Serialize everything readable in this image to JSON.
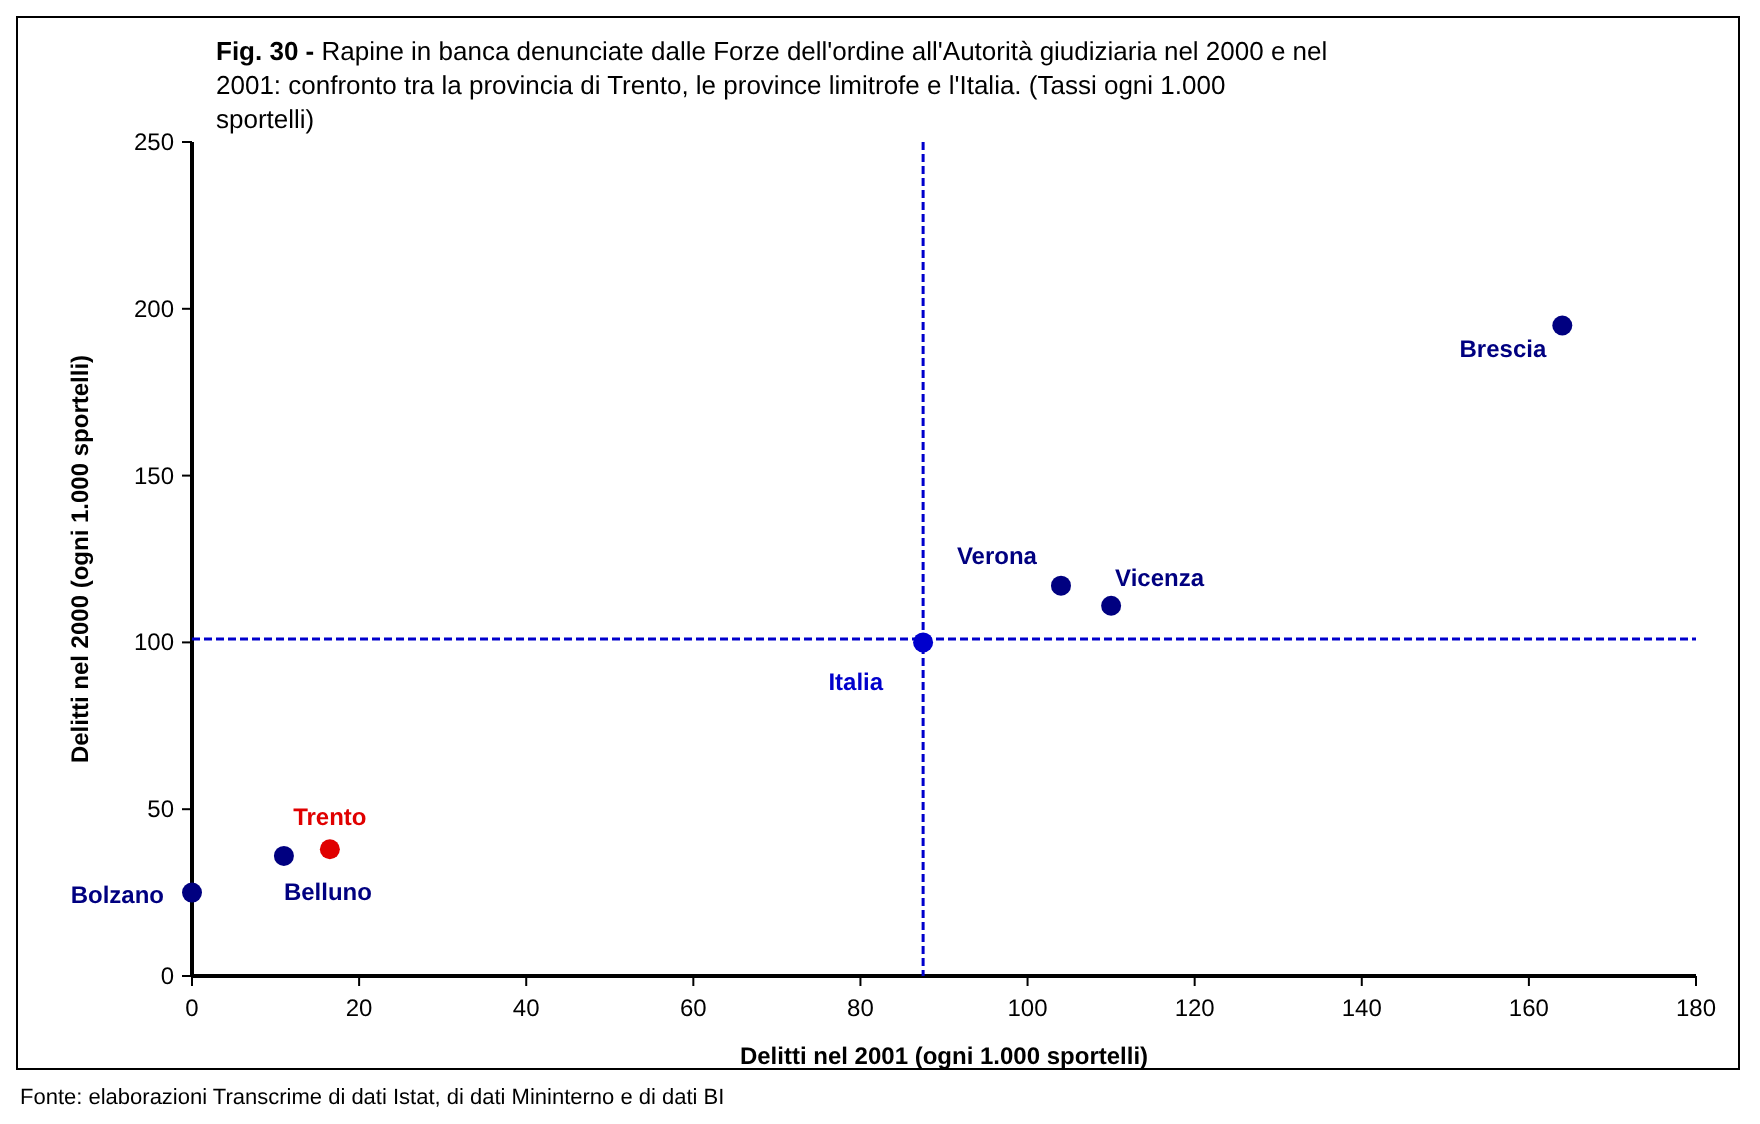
{
  "chart_data": {
    "type": "scatter",
    "title": "Fig. 30 - Rapine in banca denunciate dalle Forze dell'ordine all'Autorità giudiziaria nel 2000 e nel 2001: confronto tra la provincia di Trento, le province limitrofe e l'Italia. (Tassi ogni 1.000 sportelli)",
    "xlabel": "Delitti nel 2001 (ogni 1.000 sportelli)",
    "ylabel": "Delitti nel 2000 (ogni 1.000 sportelli)",
    "xlim": [
      0,
      180
    ],
    "xticks": [
      0,
      20,
      40,
      60,
      80,
      100,
      120,
      140,
      160,
      180
    ],
    "ylim": [
      0,
      250
    ],
    "yticks": [
      0,
      50,
      100,
      150,
      200,
      250
    ],
    "grid": false,
    "marker": "circle",
    "series": [
      {
        "name": "Bolzano",
        "color": "#000080",
        "x": [
          0
        ],
        "values": [
          25
        ]
      },
      {
        "name": "Belluno",
        "color": "#000080",
        "x": [
          11
        ],
        "values": [
          36
        ]
      },
      {
        "name": "Trento",
        "color": "#e00000",
        "x": [
          16.5
        ],
        "values": [
          38
        ]
      },
      {
        "name": "Italia",
        "color": "#0000cc",
        "x": [
          87.5
        ],
        "values": [
          100
        ]
      },
      {
        "name": "Verona",
        "color": "#000080",
        "x": [
          104
        ],
        "values": [
          117
        ]
      },
      {
        "name": "Vicenza",
        "color": "#000080",
        "x": [
          110
        ],
        "values": [
          111
        ]
      },
      {
        "name": "Brescia",
        "color": "#000080",
        "x": [
          164
        ],
        "values": [
          195
        ]
      }
    ],
    "ref_lines": [
      {
        "axis": "x",
        "value": 87.5,
        "color": "#0000cc",
        "line_style": "dashed"
      },
      {
        "axis": "y",
        "value": 101,
        "color": "#0000cc",
        "line_style": "dashed"
      }
    ],
    "annotations": [
      "Fonte: elaborazioni Transcrime di dati Istat, di dati Mininterno e di dati BI"
    ]
  }
}
